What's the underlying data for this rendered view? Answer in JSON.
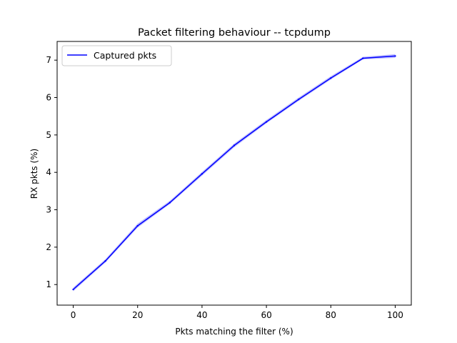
{
  "chart_data": {
    "type": "line",
    "title": "Packet filtering behaviour -- tcpdump",
    "xlabel": "Pkts matching the filter (%)",
    "ylabel": "RX pkts (%)",
    "xlim": [
      -5,
      105
    ],
    "ylim": [
      0.45,
      7.5
    ],
    "xticks": [
      0,
      20,
      40,
      60,
      80,
      100
    ],
    "yticks": [
      1,
      2,
      3,
      4,
      5,
      6,
      7
    ],
    "grid": false,
    "legend_position": "top-left",
    "series": [
      {
        "name": "Captured pkts",
        "color": "#0000ff",
        "band_color": "#8080ff",
        "x": [
          0,
          10,
          20,
          30,
          40,
          50,
          60,
          70,
          80,
          90,
          100
        ],
        "y": [
          0.87,
          1.63,
          2.57,
          3.19,
          3.96,
          4.72,
          5.35,
          5.95,
          6.52,
          7.05,
          7.11
        ],
        "y_low": [
          0.82,
          1.59,
          2.52,
          3.15,
          3.91,
          4.67,
          5.31,
          5.91,
          6.48,
          7.02,
          7.06
        ],
        "y_high": [
          0.92,
          1.68,
          2.63,
          3.24,
          4.01,
          4.77,
          5.4,
          6.0,
          6.57,
          7.09,
          7.16
        ]
      }
    ]
  }
}
